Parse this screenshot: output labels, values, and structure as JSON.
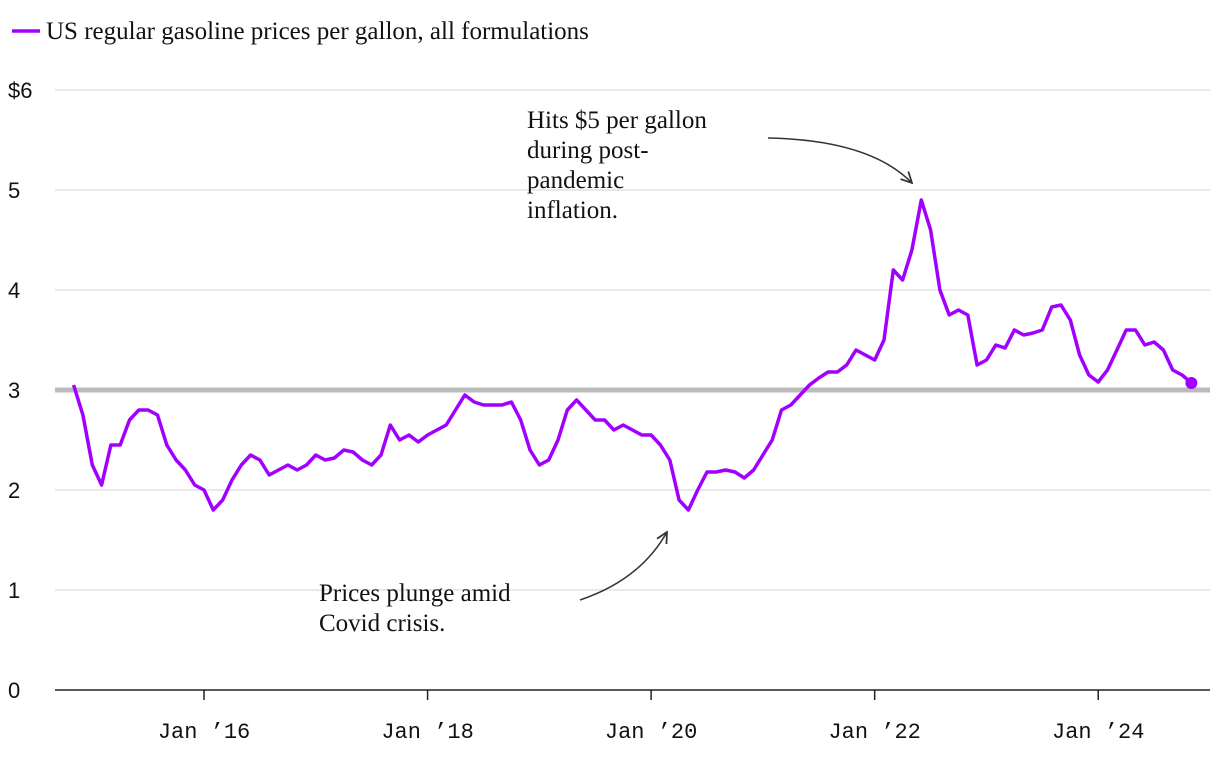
{
  "chart_data": {
    "type": "line",
    "series": [
      {
        "name": "US regular gasoline prices per gallon, all formulations",
        "color": "#a100ff",
        "values": [
          3.05,
          2.75,
          2.25,
          2.05,
          2.45,
          2.45,
          2.7,
          2.8,
          2.8,
          2.75,
          2.45,
          2.3,
          2.2,
          2.05,
          2.0,
          1.8,
          1.9,
          2.1,
          2.25,
          2.35,
          2.3,
          2.15,
          2.2,
          2.25,
          2.2,
          2.25,
          2.35,
          2.3,
          2.32,
          2.4,
          2.38,
          2.3,
          2.25,
          2.35,
          2.65,
          2.5,
          2.55,
          2.48,
          2.55,
          2.6,
          2.65,
          2.8,
          2.95,
          2.88,
          2.85,
          2.85,
          2.85,
          2.88,
          2.7,
          2.4,
          2.25,
          2.3,
          2.5,
          2.8,
          2.9,
          2.8,
          2.7,
          2.7,
          2.6,
          2.65,
          2.6,
          2.55,
          2.55,
          2.45,
          2.3,
          1.9,
          1.8,
          2.0,
          2.18,
          2.18,
          2.2,
          2.18,
          2.12,
          2.2,
          2.35,
          2.5,
          2.8,
          2.85,
          2.95,
          3.05,
          3.12,
          3.18,
          3.18,
          3.25,
          3.4,
          3.35,
          3.3,
          3.5,
          4.2,
          4.1,
          4.4,
          4.9,
          4.6,
          4.0,
          3.75,
          3.8,
          3.75,
          3.25,
          3.3,
          3.45,
          3.42,
          3.6,
          3.55,
          3.57,
          3.6,
          3.83,
          3.85,
          3.7,
          3.35,
          3.15,
          3.08,
          3.2,
          3.4,
          3.6,
          3.6,
          3.45,
          3.48,
          3.4,
          3.2,
          3.15,
          3.07
        ]
      }
    ],
    "x": [
      "2014-11",
      "2014-12",
      "2015-01",
      "2015-02",
      "2015-03",
      "2015-04",
      "2015-05",
      "2015-06",
      "2015-07",
      "2015-08",
      "2015-09",
      "2015-10",
      "2015-11",
      "2015-12",
      "2016-01",
      "2016-02",
      "2016-03",
      "2016-04",
      "2016-05",
      "2016-06",
      "2016-07",
      "2016-08",
      "2016-09",
      "2016-10",
      "2016-11",
      "2016-12",
      "2017-01",
      "2017-02",
      "2017-03",
      "2017-04",
      "2017-05",
      "2017-06",
      "2017-07",
      "2017-08",
      "2017-09",
      "2017-10",
      "2017-11",
      "2017-12",
      "2018-01",
      "2018-02",
      "2018-03",
      "2018-04",
      "2018-05",
      "2018-06",
      "2018-07",
      "2018-08",
      "2018-09",
      "2018-10",
      "2018-11",
      "2018-12",
      "2019-01",
      "2019-02",
      "2019-03",
      "2019-04",
      "2019-05",
      "2019-06",
      "2019-07",
      "2019-08",
      "2019-09",
      "2019-10",
      "2019-11",
      "2019-12",
      "2020-01",
      "2020-02",
      "2020-03",
      "2020-04",
      "2020-05",
      "2020-06",
      "2020-07",
      "2020-08",
      "2020-09",
      "2020-10",
      "2020-11",
      "2020-12",
      "2021-01",
      "2021-02",
      "2021-03",
      "2021-04",
      "2021-05",
      "2021-06",
      "2021-07",
      "2021-08",
      "2021-09",
      "2021-10",
      "2021-11",
      "2021-12",
      "2022-01",
      "2022-02",
      "2022-03",
      "2022-04",
      "2022-05",
      "2022-06",
      "2022-07",
      "2022-08",
      "2022-09",
      "2022-10",
      "2022-11",
      "2022-12",
      "2023-01",
      "2023-02",
      "2023-03",
      "2023-04",
      "2023-05",
      "2023-06",
      "2023-07",
      "2023-08",
      "2023-09",
      "2023-10",
      "2023-11",
      "2023-12",
      "2024-01",
      "2024-02",
      "2024-03",
      "2024-04",
      "2024-05",
      "2024-06",
      "2024-07",
      "2024-08",
      "2024-09",
      "2024-10",
      "2024-11"
    ],
    "xlim": [
      "2014-09",
      "2025-01"
    ],
    "xticks": [
      {
        "value": "2016-01",
        "label": "Jan ’16"
      },
      {
        "value": "2018-01",
        "label": "Jan ’18"
      },
      {
        "value": "2020-01",
        "label": "Jan ’20"
      },
      {
        "value": "2022-01",
        "label": "Jan ’22"
      },
      {
        "value": "2024-01",
        "label": "Jan ’24"
      }
    ],
    "ylim": [
      0,
      6
    ],
    "yticks": [
      0,
      1,
      2,
      3,
      4,
      {
        "value": 6,
        "label": "$6"
      },
      5
    ],
    "grid": true,
    "reference_line": 3,
    "reference_color": "#bbbbbb",
    "annotations": [
      {
        "lines": [
          "Hits $5 per gallon",
          "during post-",
          "pandemic",
          "inflation."
        ]
      },
      {
        "lines": [
          "Prices plunge amid",
          "Covid crisis."
        ]
      }
    ]
  }
}
